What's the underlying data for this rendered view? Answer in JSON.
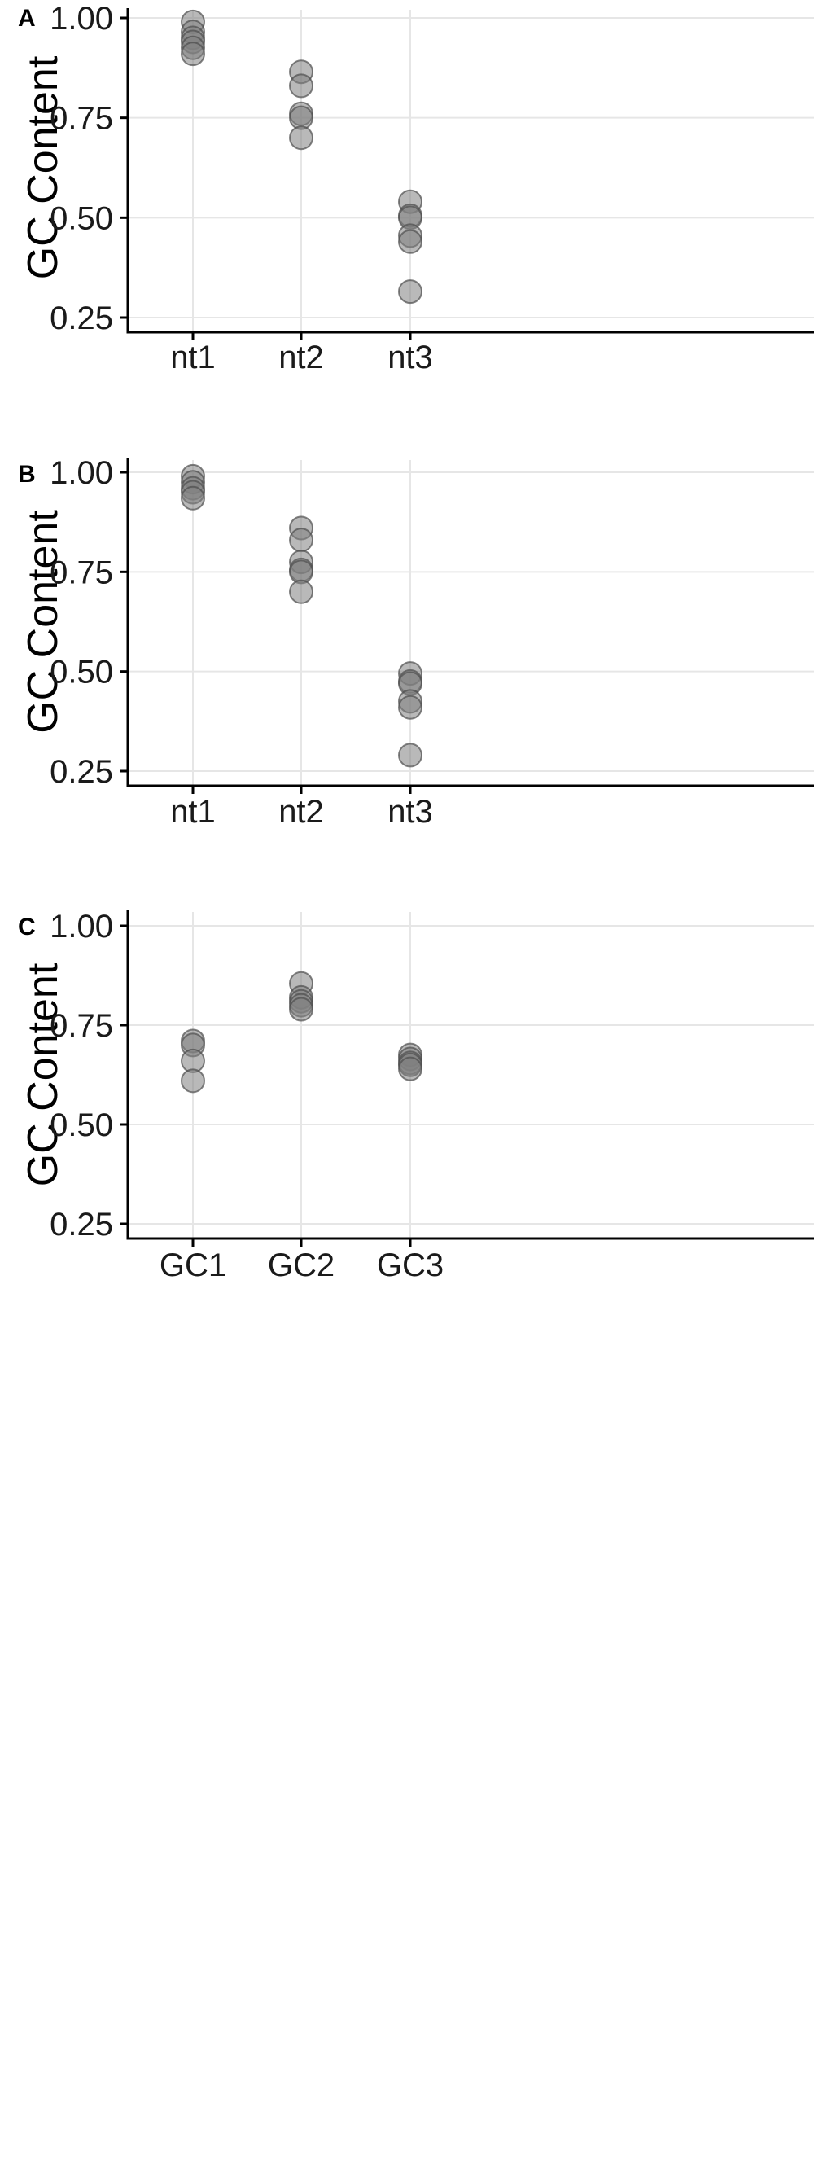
{
  "chart_data": [
    {
      "type": "scatter",
      "panel": "A",
      "ylabel": "GC Content",
      "ylim": [
        0.25,
        1.0
      ],
      "yticks": [
        "0.25",
        "0.50",
        "0.75",
        "1.00"
      ],
      "categories": [
        "nt1",
        "nt2",
        "nt3"
      ],
      "points": [
        {
          "x": "nt1",
          "y": 0.99
        },
        {
          "x": "nt1",
          "y": 0.965
        },
        {
          "x": "nt1",
          "y": 0.95
        },
        {
          "x": "nt1",
          "y": 0.94
        },
        {
          "x": "nt1",
          "y": 0.925
        },
        {
          "x": "nt1",
          "y": 0.91
        },
        {
          "x": "nt2",
          "y": 0.865
        },
        {
          "x": "nt2",
          "y": 0.83
        },
        {
          "x": "nt2",
          "y": 0.76
        },
        {
          "x": "nt2",
          "y": 0.75
        },
        {
          "x": "nt2",
          "y": 0.7
        },
        {
          "x": "nt3",
          "y": 0.54
        },
        {
          "x": "nt3",
          "y": 0.505
        },
        {
          "x": "nt3",
          "y": 0.5
        },
        {
          "x": "nt3",
          "y": 0.455
        },
        {
          "x": "nt3",
          "y": 0.44
        },
        {
          "x": "nt3",
          "y": 0.315
        }
      ]
    },
    {
      "type": "scatter",
      "panel": "B",
      "ylabel": "GC Content",
      "ylim": [
        0.25,
        1.0
      ],
      "yticks": [
        "0.25",
        "0.50",
        "0.75",
        "1.00"
      ],
      "categories": [
        "nt1",
        "nt2",
        "nt3"
      ],
      "points": [
        {
          "x": "nt1",
          "y": 0.99
        },
        {
          "x": "nt1",
          "y": 0.975
        },
        {
          "x": "nt1",
          "y": 0.96
        },
        {
          "x": "nt1",
          "y": 0.95
        },
        {
          "x": "nt1",
          "y": 0.935
        },
        {
          "x": "nt2",
          "y": 0.86
        },
        {
          "x": "nt2",
          "y": 0.83
        },
        {
          "x": "nt2",
          "y": 0.775
        },
        {
          "x": "nt2",
          "y": 0.755
        },
        {
          "x": "nt2",
          "y": 0.75
        },
        {
          "x": "nt2",
          "y": 0.7
        },
        {
          "x": "nt3",
          "y": 0.495
        },
        {
          "x": "nt3",
          "y": 0.475
        },
        {
          "x": "nt3",
          "y": 0.47
        },
        {
          "x": "nt3",
          "y": 0.425
        },
        {
          "x": "nt3",
          "y": 0.41
        },
        {
          "x": "nt3",
          "y": 0.29
        }
      ]
    },
    {
      "type": "scatter",
      "panel": "C",
      "ylabel": "GC Content",
      "ylim": [
        0.25,
        1.0
      ],
      "yticks": [
        "0.25",
        "0.50",
        "0.75",
        "1.00"
      ],
      "categories": [
        "GC1",
        "GC2",
        "GC3"
      ],
      "points": [
        {
          "x": "GC1",
          "y": 0.71
        },
        {
          "x": "GC1",
          "y": 0.7
        },
        {
          "x": "GC1",
          "y": 0.66
        },
        {
          "x": "GC1",
          "y": 0.61
        },
        {
          "x": "GC2",
          "y": 0.855
        },
        {
          "x": "GC2",
          "y": 0.82
        },
        {
          "x": "GC2",
          "y": 0.81
        },
        {
          "x": "GC2",
          "y": 0.8
        },
        {
          "x": "GC2",
          "y": 0.79
        },
        {
          "x": "GC3",
          "y": 0.675
        },
        {
          "x": "GC3",
          "y": 0.665
        },
        {
          "x": "GC3",
          "y": 0.655
        },
        {
          "x": "GC3",
          "y": 0.65
        },
        {
          "x": "GC3",
          "y": 0.64
        }
      ]
    }
  ]
}
